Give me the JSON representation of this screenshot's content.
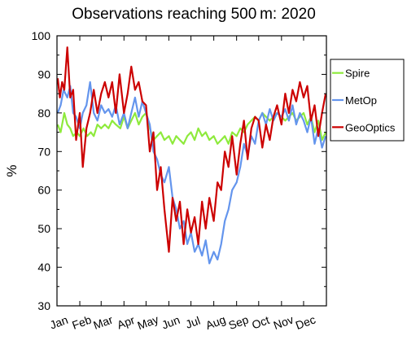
{
  "chart_data": {
    "type": "line",
    "title": "Observations reaching 500 m: 2020",
    "xlabel": "",
    "ylabel": "%",
    "xlim": [
      0,
      366
    ],
    "ylim": [
      30,
      100
    ],
    "yticks": [
      30,
      40,
      50,
      60,
      70,
      80,
      90,
      100
    ],
    "month_labels": [
      "Jan",
      "Feb",
      "Mar",
      "Apr",
      "May",
      "Jun",
      "Jul",
      "Aug",
      "Sep",
      "Oct",
      "Nov",
      "Dec"
    ],
    "month_starts": [
      0,
      31,
      60,
      91,
      121,
      152,
      182,
      213,
      244,
      274,
      305,
      335
    ],
    "grid": false,
    "legend_position": "right",
    "series": [
      {
        "name": "Spire",
        "color": "#8eea3c",
        "x": [
          1,
          5,
          10,
          14,
          18,
          22,
          27,
          31,
          36,
          41,
          46,
          50,
          55,
          60,
          65,
          70,
          75,
          80,
          86,
          91,
          96,
          101,
          106,
          111,
          116,
          121,
          126,
          131,
          136,
          141,
          146,
          152,
          157,
          162,
          167,
          172,
          177,
          182,
          187,
          192,
          197,
          202,
          207,
          213,
          218,
          223,
          228,
          233,
          238,
          244,
          249,
          254,
          259,
          264,
          269,
          274,
          279,
          284,
          289,
          294,
          299,
          305,
          310,
          315,
          320,
          325,
          330,
          335,
          340,
          345,
          350,
          355,
          360,
          365
        ],
        "y": [
          77,
          75,
          80,
          77,
          76,
          74,
          75,
          74,
          76,
          74,
          75,
          74,
          77,
          76,
          77,
          76,
          78,
          77,
          76,
          79,
          76,
          78,
          80,
          77,
          79,
          80,
          76,
          73,
          74,
          75,
          73,
          74,
          72,
          74,
          73,
          72,
          74,
          75,
          73,
          76,
          74,
          75,
          73,
          74,
          72,
          73,
          74,
          72,
          75,
          74,
          76,
          75,
          77,
          78,
          79,
          78,
          80,
          79,
          78,
          79,
          80,
          79,
          78,
          79,
          80,
          78,
          79,
          80,
          77,
          79,
          75,
          78,
          73,
          75
        ]
      },
      {
        "name": "MetOp",
        "color": "#6495ed",
        "x": [
          1,
          5,
          9,
          14,
          18,
          22,
          26,
          31,
          35,
          40,
          45,
          50,
          55,
          60,
          65,
          70,
          75,
          80,
          85,
          91,
          96,
          101,
          106,
          111,
          116,
          121,
          126,
          131,
          136,
          141,
          146,
          152,
          157,
          162,
          167,
          172,
          177,
          182,
          187,
          192,
          197,
          202,
          207,
          213,
          218,
          223,
          228,
          233,
          238,
          244,
          249,
          254,
          259,
          264,
          269,
          274,
          279,
          284,
          289,
          294,
          299,
          305,
          310,
          315,
          320,
          325,
          330,
          335,
          340,
          345,
          350,
          355,
          360,
          365
        ],
        "y": [
          80,
          82,
          86,
          84,
          87,
          80,
          79,
          76,
          80,
          82,
          88,
          80,
          78,
          82,
          80,
          81,
          79,
          82,
          77,
          80,
          76,
          80,
          84,
          79,
          83,
          80,
          77,
          70,
          68,
          64,
          62,
          66,
          58,
          55,
          50,
          52,
          46,
          49,
          44,
          46,
          43,
          47,
          41,
          44,
          42,
          46,
          52,
          55,
          60,
          62,
          66,
          72,
          69,
          74,
          72,
          78,
          80,
          77,
          81,
          78,
          80,
          79,
          81,
          78,
          82,
          77,
          80,
          78,
          75,
          79,
          72,
          76,
          71,
          74
        ]
      },
      {
        "name": "GeoOptics",
        "color": "#cc0000",
        "x": [
          1,
          4,
          7,
          10,
          14,
          18,
          22,
          26,
          31,
          35,
          40,
          45,
          50,
          55,
          60,
          65,
          70,
          75,
          80,
          85,
          91,
          96,
          101,
          106,
          111,
          116,
          121,
          126,
          131,
          136,
          141,
          146,
          152,
          157,
          162,
          167,
          172,
          177,
          182,
          187,
          192,
          197,
          202,
          207,
          213,
          218,
          223,
          228,
          233,
          238,
          244,
          249,
          254,
          259,
          264,
          269,
          274,
          279,
          284,
          289,
          294,
          299,
          305,
          310,
          315,
          320,
          325,
          330,
          335,
          340,
          345,
          350,
          355,
          360,
          365
        ],
        "y": [
          89,
          84,
          88,
          86,
          97,
          84,
          86,
          73,
          80,
          66,
          76,
          80,
          86,
          80,
          85,
          88,
          84,
          88,
          80,
          90,
          80,
          85,
          92,
          86,
          88,
          83,
          82,
          70,
          75,
          60,
          66,
          55,
          44,
          58,
          52,
          57,
          46,
          55,
          49,
          53,
          46,
          57,
          50,
          58,
          52,
          62,
          60,
          70,
          66,
          74,
          64,
          72,
          78,
          68,
          76,
          79,
          78,
          71,
          77,
          73,
          79,
          82,
          77,
          85,
          80,
          86,
          83,
          88,
          84,
          87,
          78,
          82,
          74,
          80,
          85
        ]
      }
    ]
  }
}
